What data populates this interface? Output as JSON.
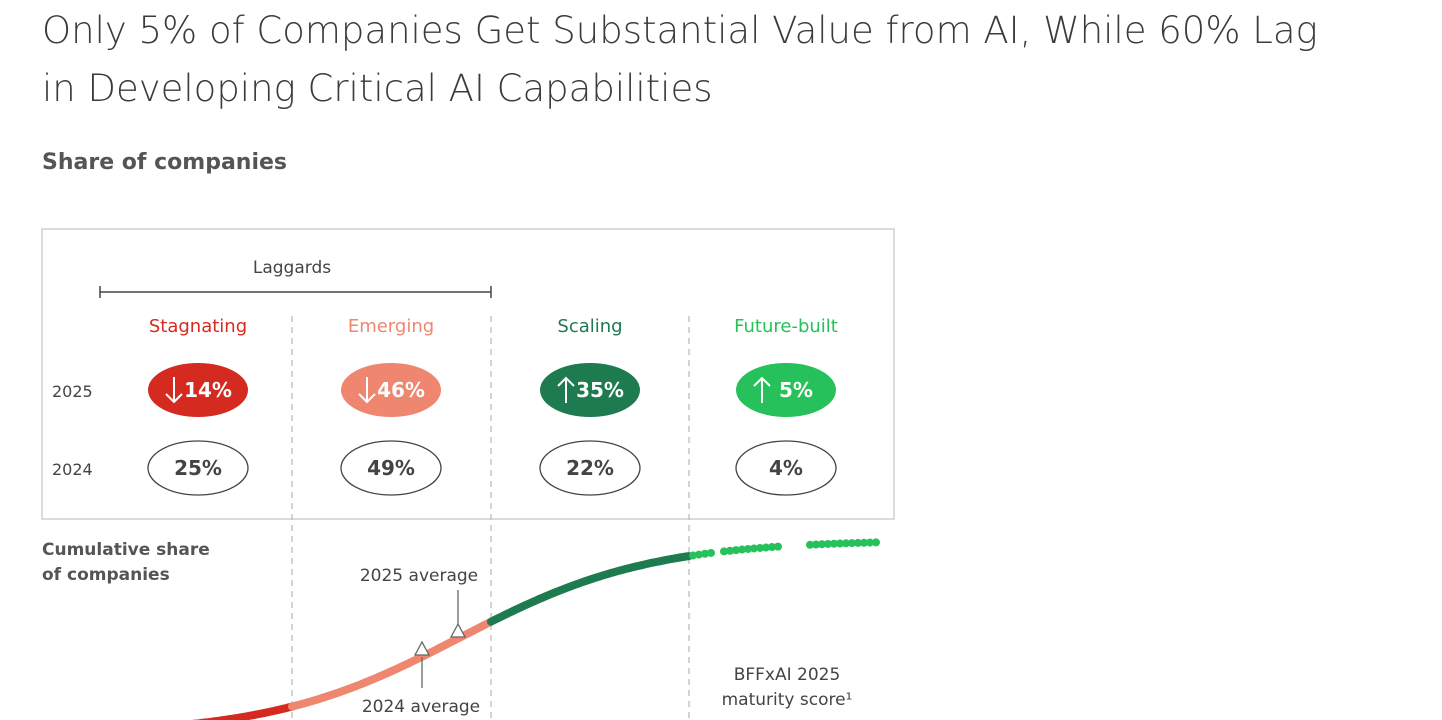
{
  "title_lines": [
    "Only 5% of Companies Get Substantial Value from AI, While 60% Lag",
    "in Developing Critical AI Capabilities"
  ],
  "subtitle": "Share of companies",
  "colors": {
    "stagnating": "#d42a20",
    "emerging": "#ef8670",
    "scaling": "#1e7a4f",
    "future_built": "#26c15a",
    "border": "#cfcfcf",
    "divider": "#bdbdbd"
  },
  "chart_data": {
    "type": "table",
    "group_label": "Laggards",
    "group_covers": [
      "Stagnating",
      "Emerging"
    ],
    "years": [
      "2025",
      "2024"
    ],
    "segments": [
      {
        "name": "Stagnating",
        "color_key": "stagnating",
        "y2025": "14%",
        "y2024": "25%",
        "trend": "down",
        "v2025": 14,
        "v2024": 25
      },
      {
        "name": "Emerging",
        "color_key": "emerging",
        "y2025": "46%",
        "y2024": "49%",
        "trend": "down",
        "v2025": 46,
        "v2024": 49
      },
      {
        "name": "Scaling",
        "color_key": "scaling",
        "y2025": "35%",
        "y2024": "22%",
        "trend": "up",
        "v2025": 35,
        "v2024": 22
      },
      {
        "name": "Future-built",
        "color_key": "future_built",
        "y2025": "5%",
        "y2024": "4%",
        "trend": "up",
        "v2025": 5,
        "v2024": 4
      }
    ],
    "cumulative": {
      "label_lines": [
        "Cumulative share",
        "of companies"
      ],
      "series": "2025 cumulative share of companies along maturity score (S-curve)",
      "annotations": {
        "avg_2025": "2025 average",
        "avg_2024": "2024 average"
      },
      "xlabel_lines": [
        "BFFxAI 2025",
        "maturity score¹"
      ]
    }
  }
}
